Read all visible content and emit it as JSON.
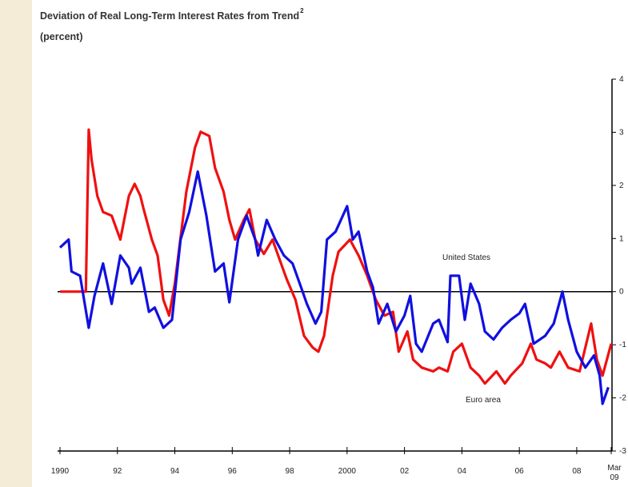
{
  "chart_data": {
    "type": "line",
    "title": "Deviation of Real Long-Term Interest Rates from Trend",
    "title_superscript": "2",
    "subtitle": "(percent)",
    "annotations": [
      "United States",
      "Euro area"
    ],
    "xlim": [
      1990,
      2009.2
    ],
    "xticks": [
      {
        "value": 1990,
        "label": "1990"
      },
      {
        "value": 1992,
        "label": "92"
      },
      {
        "value": 1994,
        "label": "94"
      },
      {
        "value": 1996,
        "label": "96"
      },
      {
        "value": 1998,
        "label": "98"
      },
      {
        "value": 2000,
        "label": "2000"
      },
      {
        "value": 2002,
        "label": "02"
      },
      {
        "value": 2004,
        "label": "04"
      },
      {
        "value": 2006,
        "label": "06"
      },
      {
        "value": 2008,
        "label": "08"
      },
      {
        "value": 2009.2,
        "label": "Mar 09"
      }
    ],
    "ylim": [
      -3,
      4
    ],
    "yticks": [
      -3,
      -2,
      -1,
      0,
      1,
      2,
      3,
      4
    ],
    "series": [
      {
        "name": "United States",
        "color": "#1010e0",
        "x": [
          1990.0,
          1990.3,
          1990.4,
          1990.7,
          1991.0,
          1991.2,
          1991.5,
          1991.8,
          1992.1,
          1992.4,
          1992.5,
          1992.8,
          1993.1,
          1993.3,
          1993.6,
          1993.9,
          1994.2,
          1994.5,
          1994.8,
          1995.1,
          1995.4,
          1995.7,
          1995.9,
          1996.2,
          1996.5,
          1996.8,
          1996.9,
          1997.2,
          1997.5,
          1997.8,
          1998.1,
          1998.4,
          1998.6,
          1998.9,
          1999.1,
          1999.3,
          1999.6,
          2000.0,
          2000.2,
          2000.4,
          2000.7,
          2000.9,
          2001.1,
          2001.4,
          2001.7,
          2002.0,
          2002.2,
          2002.4,
          2002.6,
          2003.0,
          2003.2,
          2003.5,
          2003.6,
          2003.9,
          2004.1,
          2004.3,
          2004.6,
          2004.8,
          2005.1,
          2005.4,
          2005.7,
          2006.0,
          2006.2,
          2006.5,
          2006.9,
          2007.2,
          2007.5,
          2007.7,
          2008.0,
          2008.3,
          2008.6,
          2008.8,
          2008.9,
          2009.1
        ],
        "values": [
          0.83,
          0.98,
          0.38,
          0.3,
          -0.68,
          -0.08,
          0.53,
          -0.23,
          0.68,
          0.45,
          0.15,
          0.45,
          -0.38,
          -0.3,
          -0.68,
          -0.53,
          0.98,
          1.5,
          2.26,
          1.43,
          0.38,
          0.53,
          -0.2,
          0.98,
          1.43,
          0.98,
          0.68,
          1.35,
          0.98,
          0.68,
          0.53,
          0.08,
          -0.23,
          -0.6,
          -0.38,
          0.98,
          1.13,
          1.61,
          0.98,
          1.13,
          0.38,
          0.08,
          -0.6,
          -0.23,
          -0.75,
          -0.45,
          -0.08,
          -0.98,
          -1.13,
          -0.6,
          -0.53,
          -0.95,
          0.3,
          0.3,
          -0.53,
          0.15,
          -0.23,
          -0.75,
          -0.9,
          -0.68,
          -0.53,
          -0.41,
          -0.23,
          -0.98,
          -0.83,
          -0.6,
          0.0,
          -0.53,
          -1.13,
          -1.43,
          -1.2,
          -1.58,
          -2.11,
          -1.8
        ]
      },
      {
        "name": "Euro area",
        "color": "#f01010",
        "x": [
          1990.0,
          1990.9,
          1991.0,
          1991.1,
          1991.3,
          1991.5,
          1991.8,
          1992.1,
          1992.4,
          1992.6,
          1992.8,
          1992.9,
          1993.2,
          1993.4,
          1993.6,
          1993.8,
          1994.0,
          1994.4,
          1994.7,
          1994.9,
          1995.2,
          1995.4,
          1995.7,
          1995.9,
          1996.1,
          1996.4,
          1996.6,
          1996.8,
          1997.1,
          1997.4,
          1997.7,
          1997.9,
          1998.2,
          1998.5,
          1998.8,
          1999.0,
          1999.2,
          1999.5,
          1999.7,
          2000.1,
          2000.4,
          2000.7,
          2001.0,
          2001.3,
          2001.6,
          2001.8,
          2002.1,
          2002.3,
          2002.6,
          2003.0,
          2003.2,
          2003.5,
          2003.7,
          2004.0,
          2004.3,
          2004.6,
          2004.8,
          2005.2,
          2005.5,
          2005.7,
          2006.1,
          2006.4,
          2006.6,
          2006.9,
          2007.1,
          2007.4,
          2007.7,
          2008.1,
          2008.5,
          2008.7,
          2008.9,
          2009.2
        ],
        "values": [
          0,
          0,
          3.05,
          2.48,
          1.8,
          1.5,
          1.43,
          0.98,
          1.8,
          2.03,
          1.8,
          1.58,
          0.98,
          0.68,
          -0.15,
          -0.45,
          0.15,
          1.88,
          2.71,
          3.01,
          2.93,
          2.33,
          1.88,
          1.35,
          0.98,
          1.35,
          1.55,
          0.98,
          0.71,
          0.98,
          0.53,
          0.23,
          -0.15,
          -0.83,
          -1.05,
          -1.13,
          -0.83,
          0.3,
          0.75,
          0.98,
          0.68,
          0.3,
          -0.15,
          -0.45,
          -0.38,
          -1.13,
          -0.75,
          -1.28,
          -1.43,
          -1.5,
          -1.43,
          -1.5,
          -1.13,
          -0.98,
          -1.43,
          -1.58,
          -1.73,
          -1.5,
          -1.73,
          -1.58,
          -1.35,
          -0.98,
          -1.28,
          -1.35,
          -1.43,
          -1.13,
          -1.43,
          -1.5,
          -0.6,
          -1.28,
          -1.58,
          -0.98
        ]
      }
    ]
  }
}
